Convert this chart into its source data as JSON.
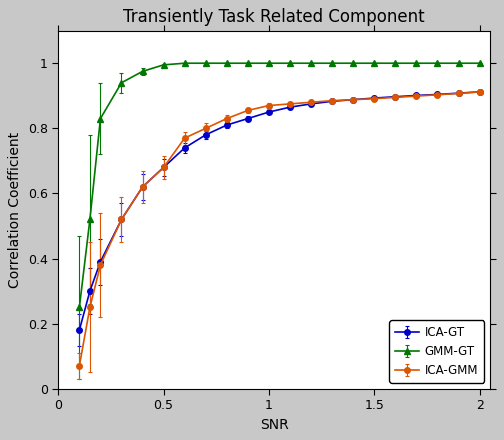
{
  "title": "Transiently Task Related Component",
  "xlabel": "SNR",
  "ylabel": "Correlation Coefficient",
  "xlim": [
    0,
    2.05
  ],
  "ylim": [
    0,
    1.1
  ],
  "xticks": [
    0,
    0.5,
    1,
    1.5,
    2
  ],
  "yticks": [
    0,
    0.2,
    0.4,
    0.6,
    0.8,
    1
  ],
  "snr_values": [
    0.1,
    0.15,
    0.2,
    0.3,
    0.4,
    0.5,
    0.6,
    0.7,
    0.8,
    0.9,
    1.0,
    1.1,
    1.2,
    1.3,
    1.4,
    1.5,
    1.6,
    1.7,
    1.8,
    1.9,
    2.0
  ],
  "ica_gt": [
    0.18,
    0.3,
    0.39,
    0.52,
    0.62,
    0.68,
    0.74,
    0.78,
    0.81,
    0.83,
    0.85,
    0.865,
    0.875,
    0.883,
    0.888,
    0.893,
    0.897,
    0.901,
    0.904,
    0.908,
    0.912
  ],
  "ica_gt_err": [
    0.05,
    0.07,
    0.07,
    0.05,
    0.04,
    0.025,
    0.015,
    0.012,
    0.01,
    0.008,
    0.007,
    0.006,
    0.005,
    0.005,
    0.005,
    0.005,
    0.005,
    0.005,
    0.005,
    0.005,
    0.005
  ],
  "gmm_gt": [
    0.25,
    0.52,
    0.83,
    0.94,
    0.975,
    0.995,
    1.0,
    1.0,
    1.0,
    1.0,
    1.0,
    1.0,
    1.0,
    1.0,
    1.0,
    1.0,
    1.0,
    1.0,
    1.0,
    1.0,
    1.0
  ],
  "gmm_gt_err": [
    0.22,
    0.26,
    0.11,
    0.03,
    0.01,
    0.004,
    0.002,
    0.001,
    0.001,
    0.001,
    0.001,
    0.001,
    0.001,
    0.001,
    0.001,
    0.001,
    0.001,
    0.001,
    0.001,
    0.001,
    0.001
  ],
  "ica_gmm": [
    0.07,
    0.25,
    0.38,
    0.52,
    0.62,
    0.68,
    0.77,
    0.8,
    0.83,
    0.855,
    0.87,
    0.875,
    0.88,
    0.885,
    0.888,
    0.891,
    0.895,
    0.899,
    0.903,
    0.907,
    0.912
  ],
  "ica_gmm_err": [
    0.04,
    0.2,
    0.16,
    0.07,
    0.05,
    0.035,
    0.02,
    0.015,
    0.01,
    0.008,
    0.007,
    0.006,
    0.006,
    0.005,
    0.005,
    0.005,
    0.005,
    0.005,
    0.005,
    0.005,
    0.005
  ],
  "color_ica_gt": "#0000cc",
  "color_gmm_gt": "#007700",
  "color_ica_gmm": "#dd5500",
  "legend_labels": [
    "ICA-GT",
    "GMM-GT",
    "ICA-GMM"
  ],
  "legend_loc": "lower right",
  "bg_color": "#ffffff",
  "fig_bg": "#c8c8c8"
}
